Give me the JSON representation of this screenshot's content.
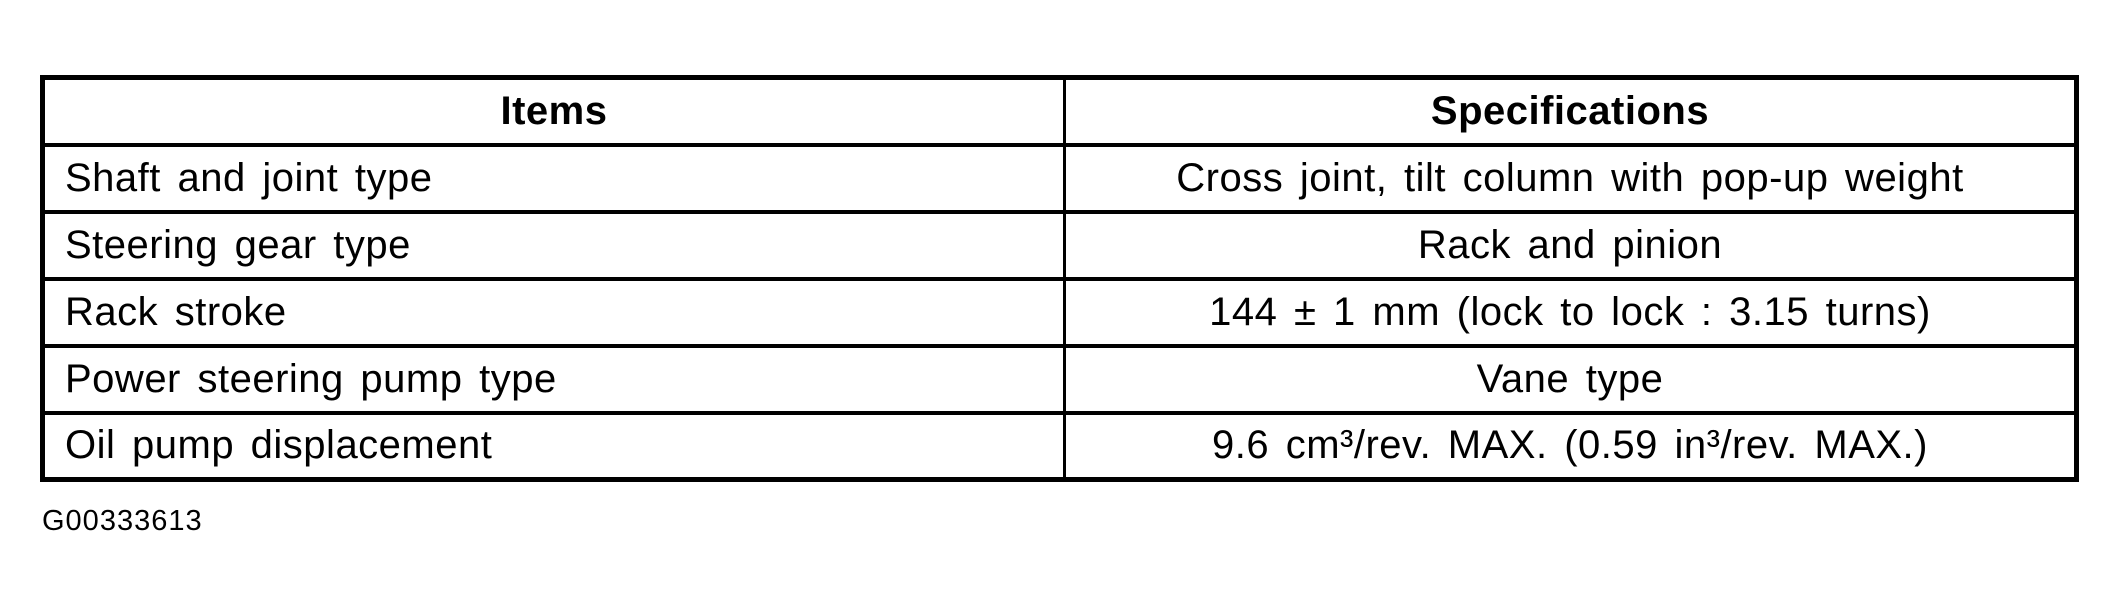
{
  "colors": {
    "background": "#ffffff",
    "text": "#000000",
    "border": "#000000"
  },
  "table": {
    "headers": {
      "items": "Items",
      "specifications": "Specifications"
    },
    "rows": [
      {
        "item": "Shaft and joint type",
        "spec": "Cross joint, tilt column with pop-up weight"
      },
      {
        "item": "Steering gear type",
        "spec": "Rack and pinion"
      },
      {
        "item": "Rack stroke",
        "spec": "144 ± 1 mm (lock to lock : 3.15 turns)"
      },
      {
        "item": "Power steering pump type",
        "spec": "Vane type"
      },
      {
        "item": "Oil pump displacement",
        "spec": "9.6 cm³/rev. MAX. (0.59 in³/rev. MAX.)"
      }
    ]
  },
  "footer": {
    "figure_code": "G00333613"
  }
}
